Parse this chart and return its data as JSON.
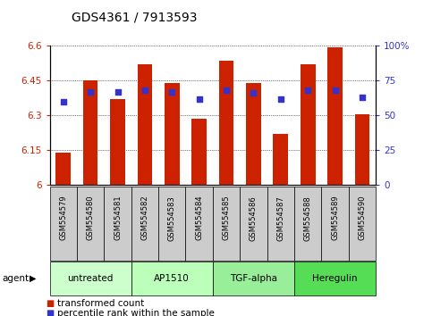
{
  "title": "GDS4361 / 7913593",
  "samples": [
    "GSM554579",
    "GSM554580",
    "GSM554581",
    "GSM554582",
    "GSM554583",
    "GSM554584",
    "GSM554585",
    "GSM554586",
    "GSM554587",
    "GSM554588",
    "GSM554589",
    "GSM554590"
  ],
  "bar_values": [
    6.14,
    6.45,
    6.37,
    6.52,
    6.44,
    6.285,
    6.535,
    6.44,
    6.22,
    6.52,
    6.595,
    6.305
  ],
  "percentile_values": [
    60,
    67,
    67,
    68,
    67,
    62,
    68,
    66,
    62,
    68,
    68,
    63
  ],
  "ylim_left": [
    6.0,
    6.6
  ],
  "ylim_right": [
    0,
    100
  ],
  "yticks_left": [
    6.0,
    6.15,
    6.3,
    6.45,
    6.6
  ],
  "yticks_right": [
    0,
    25,
    50,
    75,
    100
  ],
  "ytick_labels_left": [
    "6",
    "6.15",
    "6.3",
    "6.45",
    "6.6"
  ],
  "ytick_labels_right": [
    "0",
    "25",
    "50",
    "75",
    "100%"
  ],
  "bar_color": "#cc2200",
  "dot_color": "#3333cc",
  "agent_groups": [
    {
      "label": "untreated",
      "start": 0,
      "end": 3,
      "color": "#ccffcc"
    },
    {
      "label": "AP1510",
      "start": 3,
      "end": 6,
      "color": "#bbffbb"
    },
    {
      "label": "TGF-alpha",
      "start": 6,
      "end": 9,
      "color": "#99ee99"
    },
    {
      "label": "Heregulin",
      "start": 9,
      "end": 12,
      "color": "#55dd55"
    }
  ],
  "grid_color": "black",
  "grid_style": "dotted",
  "background_plot": "white",
  "background_xtick": "#cccccc",
  "bar_width": 0.55,
  "title_fontsize": 10,
  "tick_fontsize": 7.5,
  "sample_fontsize": 6.0,
  "legend_fontsize": 7.5,
  "agent_label": "agent",
  "legend_items": [
    "transformed count",
    "percentile rank within the sample"
  ]
}
